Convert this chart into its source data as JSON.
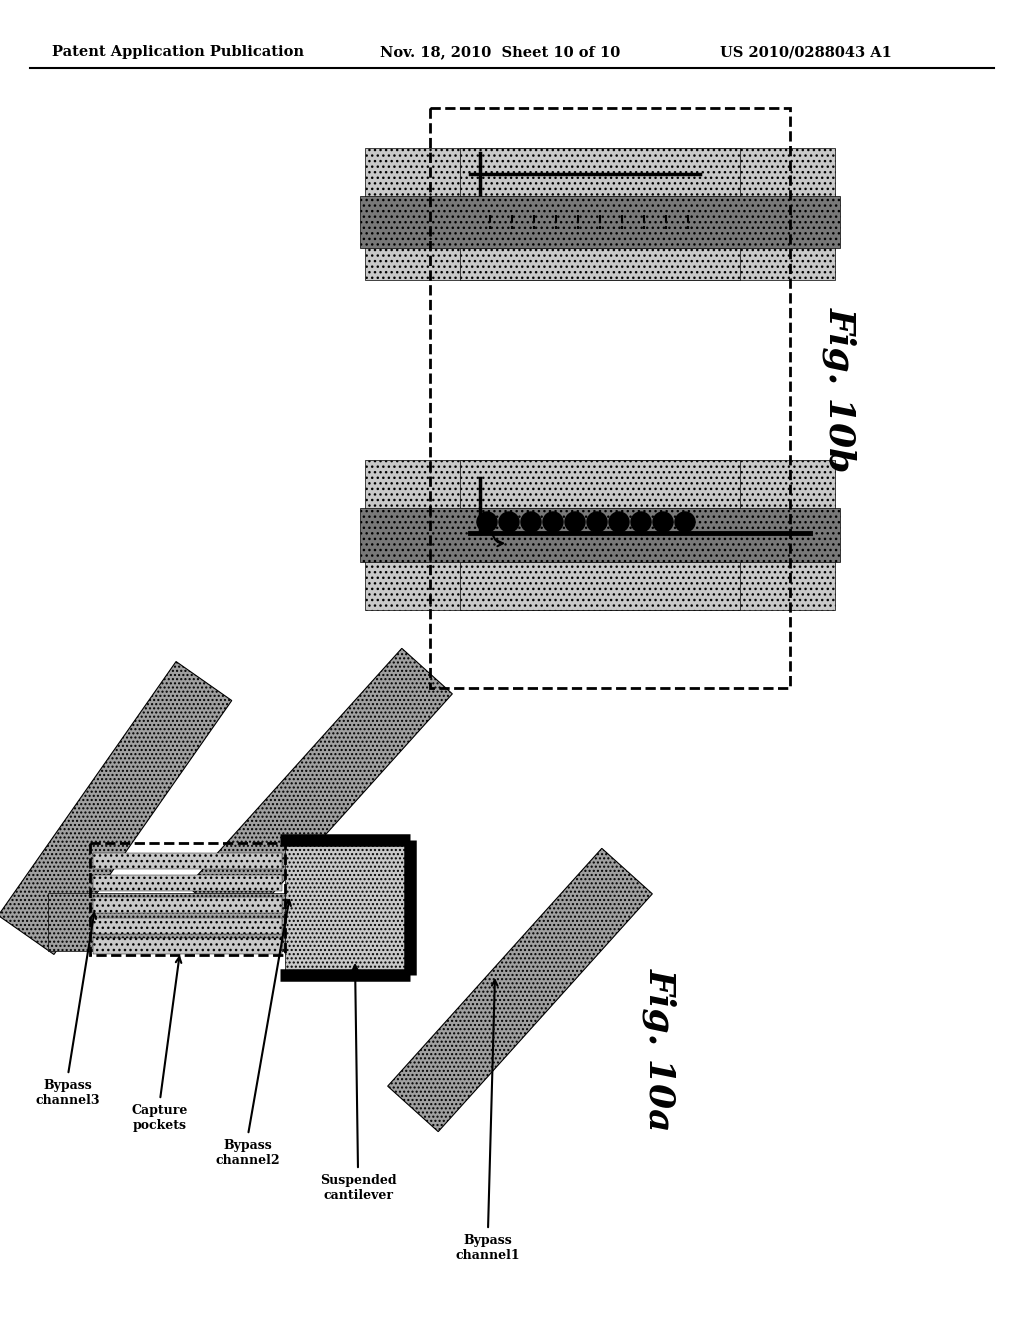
{
  "bg_color": "#ffffff",
  "header_text": "Patent Application Publication",
  "header_date": "Nov. 18, 2010  Sheet 10 of 10",
  "header_patent": "US 2010/0288043 A1",
  "fig10b_label": "Fig. 10b",
  "fig10a_label": "Fig. 10a",
  "gray_light": "#c8c8c8",
  "gray_medium": "#a0a0a0",
  "gray_dark": "#787878",
  "black": "#000000",
  "white": "#ffffff"
}
